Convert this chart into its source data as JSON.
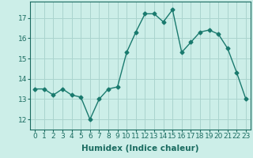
{
  "x": [
    0,
    1,
    2,
    3,
    4,
    5,
    6,
    7,
    8,
    9,
    10,
    11,
    12,
    13,
    14,
    15,
    16,
    17,
    18,
    19,
    20,
    21,
    22,
    23
  ],
  "y": [
    13.5,
    13.5,
    13.2,
    13.5,
    13.2,
    13.1,
    12.0,
    13.0,
    13.5,
    13.6,
    15.3,
    16.3,
    17.2,
    17.2,
    16.8,
    17.4,
    15.3,
    15.8,
    16.3,
    16.4,
    16.2,
    15.5,
    14.3,
    13.0
  ],
  "line_color": "#1a7a6e",
  "marker": "D",
  "markersize": 2.5,
  "linewidth": 1.0,
  "bg_color": "#cceee8",
  "grid_color": "#aad4ce",
  "xlabel": "Humidex (Indice chaleur)",
  "ylim": [
    11.5,
    17.8
  ],
  "xlim": [
    -0.5,
    23.5
  ],
  "yticks": [
    12,
    13,
    14,
    15,
    16,
    17
  ],
  "xticks": [
    0,
    1,
    2,
    3,
    4,
    5,
    6,
    7,
    8,
    9,
    10,
    11,
    12,
    13,
    14,
    15,
    16,
    17,
    18,
    19,
    20,
    21,
    22,
    23
  ],
  "tick_color": "#1a6b60",
  "xlabel_fontsize": 7.5,
  "tick_fontsize": 6.5
}
